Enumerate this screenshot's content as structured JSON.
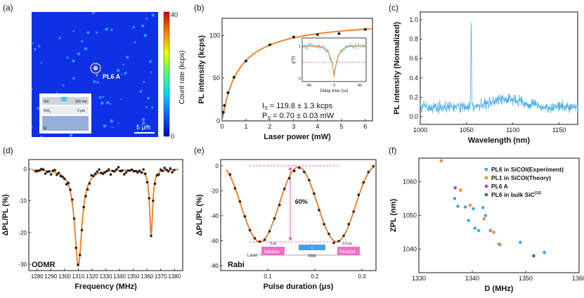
{
  "panels": {
    "a": {
      "letter": "(a)",
      "marker_label": "PL6 A",
      "scalebar_label": "5 μm",
      "colorbar": {
        "label": "Count rate (kcps)",
        "max": "40",
        "min": "0",
        "stops": [
          "#0000c8",
          "#0060ff",
          "#00d0ff",
          "#40ff80",
          "#e8ff00",
          "#ff8000",
          "#d00000"
        ]
      },
      "inset": {
        "sic": "SiC",
        "sic_thick": "200 nm",
        "sio2": "SiO",
        "sio2_sub": "2",
        "sio2_thick": "2 μm",
        "si": "Si"
      }
    },
    "b": {
      "letter": "(b)",
      "inset_y": "g",
      "inset_y_sup": "2",
      "inset_y_rest": "(t)",
      "inset_x": "Delay time (ns)",
      "inset_xticks": [
        "-40",
        "0",
        "40"
      ],
      "inset_yticks": [
        "1",
        "0"
      ],
      "is_text_1": "I",
      "is_sub": "S",
      "is_text_2": " = 119.8 ± 1.3 kcps",
      "ps_text_1": "P",
      "ps_sub": "S",
      "ps_text_2": " = 0.70 ± 0.03 mW"
    },
    "c": {
      "letter": "(c)"
    },
    "d": {
      "letter": "(d)",
      "tag": "ODMR"
    },
    "e": {
      "letter": "(e)",
      "tag": "Rabi",
      "contrast_label": "60%",
      "seq_laser": "Laser",
      "seq_mw": "MW",
      "seq_init": "Initialize",
      "seq_readout": "Readout",
      "seq_init_time": "3 μs",
      "seq_readout_time": "0.2 μs",
      "seq_tau": "τ"
    },
    "f": {
      "letter": "(f)",
      "legend": [
        {
          "label": "PL6 in SiCOI(Experiment)",
          "sup": "",
          "color": "#3fa9e6"
        },
        {
          "label": "PL1 in SiCOI(Theory)",
          "sup": "",
          "color": "#f0922a"
        },
        {
          "label": "PL6 A",
          "sup": "",
          "color": "#c23cd0"
        },
        {
          "label": "PL6 in bulk SiC",
          "sup": "[16]",
          "color": "#1e8c2e"
        }
      ]
    }
  },
  "chart_data": [
    {
      "panel": "b",
      "type": "scatter",
      "xlabel": "Laser power (mW)",
      "ylabel": "PL intensity (kcps)",
      "xlim": [
        0,
        6.3
      ],
      "ylim": [
        0,
        120
      ],
      "xticks": [
        0,
        1,
        2,
        3,
        4,
        5,
        6
      ],
      "yticks": [
        0,
        50,
        100
      ],
      "points": [
        [
          0.05,
          10
        ],
        [
          0.1,
          18
        ],
        [
          0.25,
          33
        ],
        [
          0.5,
          51
        ],
        [
          1.0,
          70
        ],
        [
          2.0,
          89
        ],
        [
          3.0,
          98
        ],
        [
          4.0,
          101
        ],
        [
          4.9,
          102
        ],
        [
          6.0,
          107
        ]
      ],
      "fit": {
        "Is": 119.8,
        "Ps": 0.7
      }
    },
    {
      "panel": "c",
      "type": "line",
      "xlabel": "Wavelength (nm)",
      "ylabel": "PL intensity (Normalized)",
      "xlim": [
        1000,
        1170
      ],
      "ylim": [
        -0.08,
        1.08
      ],
      "xticks": [
        1000,
        1050,
        1100,
        1150
      ],
      "yticks": [
        0.0,
        0.2,
        0.4,
        0.6,
        0.8,
        1.0
      ],
      "peak": {
        "x": 1055,
        "y": 1.0
      }
    },
    {
      "panel": "d",
      "type": "scatter",
      "xlabel": "Frequency (MHz)",
      "ylabel": "ΔPL/PL (%)",
      "xlim": [
        1274,
        1386
      ],
      "ylim": [
        -32,
        3
      ],
      "xticks": [
        1280,
        1290,
        1300,
        1310,
        1320,
        1330,
        1340,
        1350,
        1360,
        1370,
        1380
      ],
      "yticks": [
        0,
        -10,
        -20,
        -30
      ],
      "dips": [
        {
          "x": 1310,
          "depth": -30.5
        },
        {
          "x": 1363,
          "depth": -21
        }
      ]
    },
    {
      "panel": "e",
      "type": "scatter",
      "xlabel": "Pulse duration (μs)",
      "ylabel": "ΔPL/PL (%)",
      "xlim": [
        0,
        0.33
      ],
      "ylim": [
        -84,
        5
      ],
      "xticks": [
        0.1,
        0.2,
        0.3
      ],
      "yticks": [
        0,
        -20,
        -40,
        -60,
        -80
      ],
      "period_us": 0.16,
      "amplitude": 60
    },
    {
      "panel": "f",
      "type": "scatter",
      "xlabel": "D (MHz)",
      "ylabel": "ZPL (nm)",
      "xlim": [
        1330,
        1360
      ],
      "ylim": [
        1033,
        1067
      ],
      "xticks": [
        1330,
        1340,
        1350,
        1360
      ],
      "yticks": [
        1040,
        1050,
        1060
      ],
      "series": [
        {
          "name": "PL6 in SiCOI(Experiment)",
          "color": "#3fa9e6",
          "points": [
            [
              1336.7,
              1055
            ],
            [
              1337.3,
              1052.7
            ],
            [
              1338.7,
              1052.5
            ],
            [
              1340.2,
              1052
            ],
            [
              1339.3,
              1048.5
            ],
            [
              1340.5,
              1046.2
            ],
            [
              1341.2,
              1045.5
            ],
            [
              1342.5,
              1050
            ],
            [
              1342.0,
              1052.3
            ],
            [
              1343.4,
              1045.5
            ],
            [
              1345.0,
              1041.5
            ],
            [
              1349.0,
              1042.0
            ],
            [
              1353.5,
              1039.0
            ]
          ]
        },
        {
          "name": "PL1 in SiCOI(Theory)",
          "color": "#f0922a",
          "points": [
            [
              1334.2,
              1066.2
            ],
            [
              1337.8,
              1057.5
            ],
            [
              1339.6,
              1053.0
            ],
            [
              1342.2,
              1049.0
            ],
            [
              1344.0,
              1045.0
            ],
            [
              1345.2,
              1041.3
            ]
          ]
        },
        {
          "name": "PL6 A",
          "color": "#c23cd0",
          "points": [
            [
              1336.8,
              1058.2
            ]
          ]
        },
        {
          "name": "PL6 in bulk SiC",
          "color": "#1e8c2e",
          "points": [
            [
              1351.5,
              1038.0
            ]
          ]
        }
      ]
    }
  ]
}
